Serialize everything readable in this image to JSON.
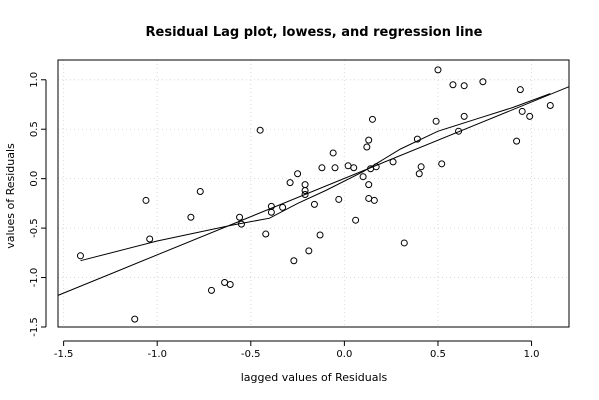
{
  "chart_data": {
    "type": "scatter",
    "title": "Residual Lag plot, lowess, and regression line",
    "xlabel": "lagged values of Residuals",
    "ylabel": "values of Residuals",
    "xlim": [
      -1.53,
      1.2
    ],
    "ylim": [
      -1.5,
      1.2
    ],
    "grid": true,
    "x_ticks": [
      -1.5,
      -1.0,
      -0.5,
      0.0,
      0.5,
      1.0
    ],
    "x_tick_labels": [
      "-1.5",
      "-1.0",
      "-0.5",
      "0.0",
      "0.5",
      "1.0"
    ],
    "y_ticks": [
      -1.5,
      -1.0,
      -0.5,
      0.0,
      0.5,
      1.0
    ],
    "y_tick_labels": [
      "-1.5",
      "-1.0",
      "-0.5",
      "0.0",
      "0.5",
      "1.0"
    ],
    "points": [
      {
        "x": -1.41,
        "y": -0.78
      },
      {
        "x": -1.12,
        "y": -1.42
      },
      {
        "x": -1.06,
        "y": -0.22
      },
      {
        "x": -1.04,
        "y": -0.61
      },
      {
        "x": -0.82,
        "y": -0.39
      },
      {
        "x": -0.77,
        "y": -0.13
      },
      {
        "x": -0.71,
        "y": -1.13
      },
      {
        "x": -0.64,
        "y": -1.05
      },
      {
        "x": -0.61,
        "y": -1.07
      },
      {
        "x": -0.56,
        "y": -0.39
      },
      {
        "x": -0.55,
        "y": -0.46
      },
      {
        "x": -0.45,
        "y": 0.49
      },
      {
        "x": -0.42,
        "y": -0.56
      },
      {
        "x": -0.39,
        "y": -0.28
      },
      {
        "x": -0.39,
        "y": -0.34
      },
      {
        "x": -0.33,
        "y": -0.29
      },
      {
        "x": -0.29,
        "y": -0.04
      },
      {
        "x": -0.27,
        "y": -0.83
      },
      {
        "x": -0.25,
        "y": 0.05
      },
      {
        "x": -0.21,
        "y": -0.06
      },
      {
        "x": -0.21,
        "y": -0.12
      },
      {
        "x": -0.21,
        "y": -0.16
      },
      {
        "x": -0.19,
        "y": -0.73
      },
      {
        "x": -0.16,
        "y": -0.26
      },
      {
        "x": -0.13,
        "y": -0.57
      },
      {
        "x": -0.12,
        "y": 0.11
      },
      {
        "x": -0.06,
        "y": 0.26
      },
      {
        "x": -0.05,
        "y": 0.11
      },
      {
        "x": -0.03,
        "y": -0.21
      },
      {
        "x": 0.02,
        "y": 0.13
      },
      {
        "x": 0.05,
        "y": 0.11
      },
      {
        "x": 0.06,
        "y": -0.42
      },
      {
        "x": 0.1,
        "y": 0.02
      },
      {
        "x": 0.12,
        "y": 0.32
      },
      {
        "x": 0.13,
        "y": 0.39
      },
      {
        "x": 0.13,
        "y": -0.06
      },
      {
        "x": 0.13,
        "y": -0.2
      },
      {
        "x": 0.14,
        "y": 0.1
      },
      {
        "x": 0.15,
        "y": 0.6
      },
      {
        "x": 0.16,
        "y": -0.22
      },
      {
        "x": 0.17,
        "y": 0.12
      },
      {
        "x": 0.26,
        "y": 0.17
      },
      {
        "x": 0.32,
        "y": -0.65
      },
      {
        "x": 0.39,
        "y": 0.4
      },
      {
        "x": 0.4,
        "y": 0.05
      },
      {
        "x": 0.41,
        "y": 0.12
      },
      {
        "x": 0.49,
        "y": 0.58
      },
      {
        "x": 0.5,
        "y": 1.1
      },
      {
        "x": 0.52,
        "y": 0.15
      },
      {
        "x": 0.58,
        "y": 0.95
      },
      {
        "x": 0.61,
        "y": 0.48
      },
      {
        "x": 0.64,
        "y": 0.94
      },
      {
        "x": 0.64,
        "y": 0.63
      },
      {
        "x": 0.74,
        "y": 0.98
      },
      {
        "x": 0.92,
        "y": 0.38
      },
      {
        "x": 0.94,
        "y": 0.9
      },
      {
        "x": 0.95,
        "y": 0.68
      },
      {
        "x": 0.99,
        "y": 0.63
      },
      {
        "x": 1.1,
        "y": 0.74
      }
    ],
    "regression_line": {
      "x": [
        -1.53,
        1.2
      ],
      "y": [
        -1.18,
        0.93
      ]
    },
    "lowess_line": {
      "x": [
        -1.41,
        -1.0,
        -0.6,
        -0.4,
        -0.25,
        -0.1,
        0.1,
        0.3,
        0.5,
        0.7,
        0.9,
        1.1
      ],
      "y": [
        -0.83,
        -0.63,
        -0.47,
        -0.4,
        -0.25,
        -0.12,
        0.07,
        0.3,
        0.48,
        0.6,
        0.72,
        0.86
      ]
    }
  }
}
